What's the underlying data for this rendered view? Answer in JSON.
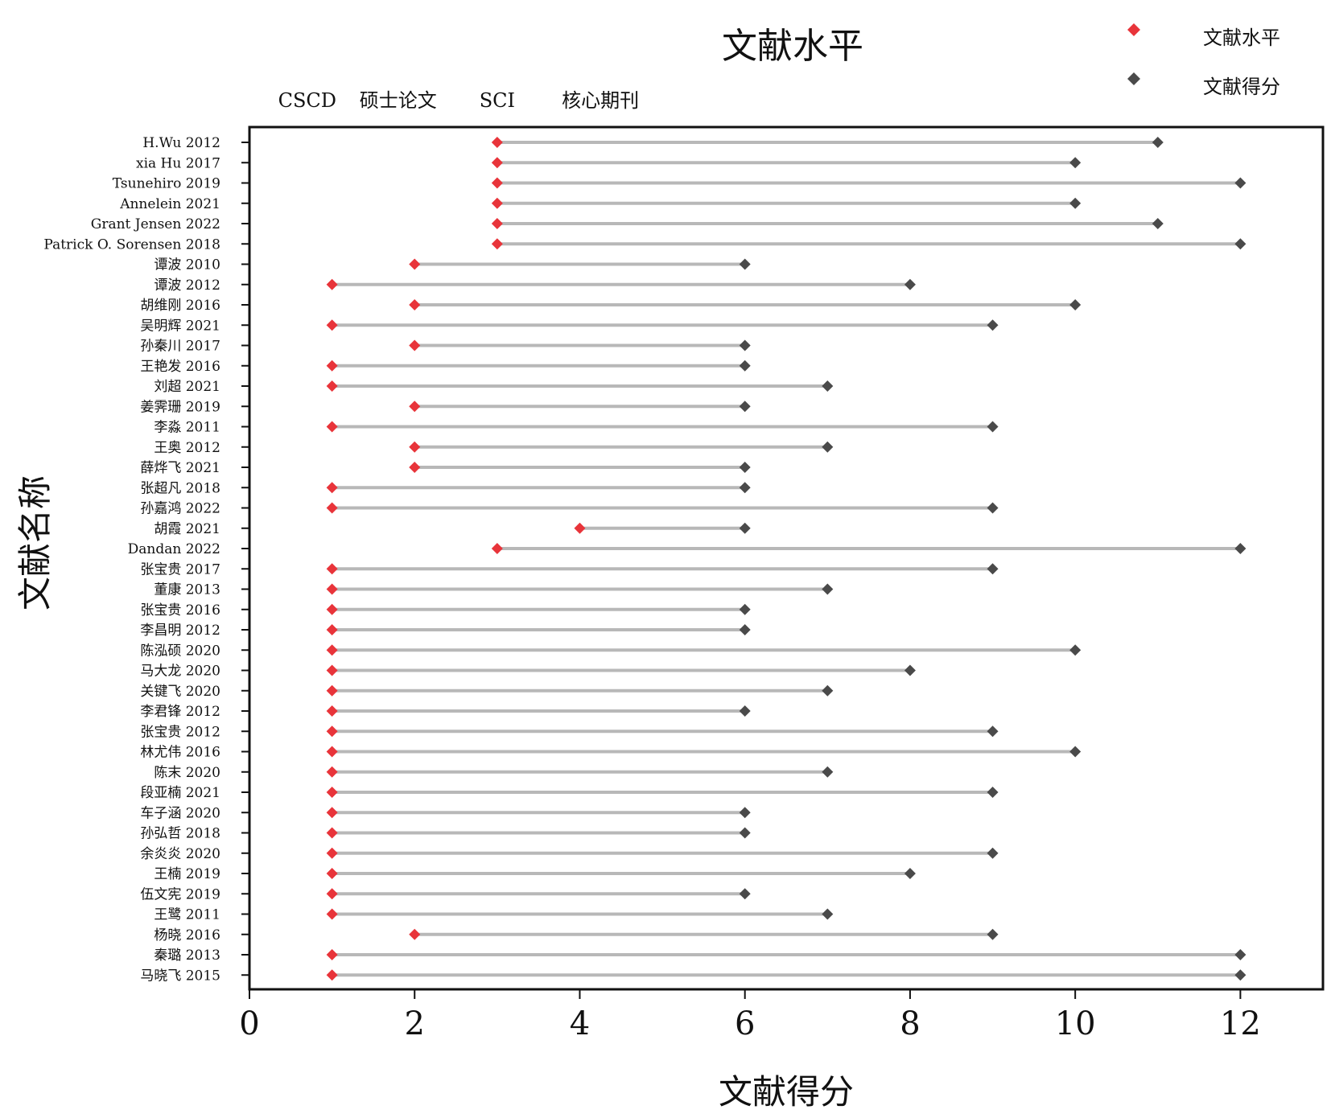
{
  "chart_data": {
    "type": "dumbbell",
    "title": "文献水平",
    "xlabel": "文献得分",
    "ylabel": "文献名称",
    "xlim": [
      0,
      13
    ],
    "xticks": [
      "0",
      "2",
      "4",
      "6",
      "8",
      "10",
      "12"
    ],
    "level_labels": [
      {
        "text": "CSCD",
        "x": 0.7
      },
      {
        "text": "硕士论文",
        "x": 1.8
      },
      {
        "text": "SCI",
        "x": 3.0
      },
      {
        "text": "核心期刊",
        "x": 4.25
      }
    ],
    "legend": {
      "position": "top-right",
      "items": [
        {
          "label": "文献水平",
          "color": "#e8343a"
        },
        {
          "label": "文献得分",
          "color": "#4a4a4a"
        }
      ]
    },
    "colors": {
      "level": "#e8343a",
      "score": "#4a4a4a",
      "segment": "#b8b8b8"
    },
    "grid": false,
    "rows": [
      {
        "name": "H.Wu 2012",
        "level": 3,
        "score": 11
      },
      {
        "name": "xia Hu 2017",
        "level": 3,
        "score": 10
      },
      {
        "name": "Tsunehiro 2019",
        "level": 3,
        "score": 12
      },
      {
        "name": "Annelein 2021",
        "level": 3,
        "score": 10
      },
      {
        "name": "Grant Jensen 2022",
        "level": 3,
        "score": 11
      },
      {
        "name": "Patrick O. Sorensen 2018",
        "level": 3,
        "score": 12
      },
      {
        "name": "谭波 2010",
        "level": 2,
        "score": 6
      },
      {
        "name": "谭波 2012",
        "level": 1,
        "score": 8
      },
      {
        "name": "胡维刚 2016",
        "level": 2,
        "score": 10
      },
      {
        "name": "吴明辉 2021",
        "level": 1,
        "score": 9
      },
      {
        "name": "孙秦川 2017",
        "level": 2,
        "score": 6
      },
      {
        "name": "王艳发 2016",
        "level": 1,
        "score": 6
      },
      {
        "name": "刘超 2021",
        "level": 1,
        "score": 7
      },
      {
        "name": "姜霁珊 2019",
        "level": 2,
        "score": 6
      },
      {
        "name": "李淼 2011",
        "level": 1,
        "score": 9
      },
      {
        "name": "王奥 2012",
        "level": 2,
        "score": 7
      },
      {
        "name": "薛烨飞 2021",
        "level": 2,
        "score": 6
      },
      {
        "name": "张超凡 2018",
        "level": 1,
        "score": 6
      },
      {
        "name": "孙嘉鸿 2022",
        "level": 1,
        "score": 9
      },
      {
        "name": "胡霞 2021",
        "level": 4,
        "score": 6
      },
      {
        "name": "Dandan 2022",
        "level": 3,
        "score": 12
      },
      {
        "name": "张宝贵 2017",
        "level": 1,
        "score": 9
      },
      {
        "name": "董康 2013",
        "level": 1,
        "score": 7
      },
      {
        "name": "张宝贵 2016",
        "level": 1,
        "score": 6
      },
      {
        "name": "李昌明 2012",
        "level": 1,
        "score": 6
      },
      {
        "name": "陈泓硕 2020",
        "level": 1,
        "score": 10
      },
      {
        "name": "马大龙 2020",
        "level": 1,
        "score": 8
      },
      {
        "name": "关键飞 2020",
        "level": 1,
        "score": 7
      },
      {
        "name": "李君锋 2012",
        "level": 1,
        "score": 6
      },
      {
        "name": "张宝贵 2012",
        "level": 1,
        "score": 9
      },
      {
        "name": "林尤伟 2016",
        "level": 1,
        "score": 10
      },
      {
        "name": "陈末 2020",
        "level": 1,
        "score": 7
      },
      {
        "name": "段亚楠 2021",
        "level": 1,
        "score": 9
      },
      {
        "name": "车子涵 2020",
        "level": 1,
        "score": 6
      },
      {
        "name": "孙弘哲 2018",
        "level": 1,
        "score": 6
      },
      {
        "name": "余炎炎 2020",
        "level": 1,
        "score": 9
      },
      {
        "name": "王楠 2019",
        "level": 1,
        "score": 8
      },
      {
        "name": "伍文宪 2019",
        "level": 1,
        "score": 6
      },
      {
        "name": "王鹭 2011",
        "level": 1,
        "score": 7
      },
      {
        "name": "杨晓 2016",
        "level": 2,
        "score": 9
      },
      {
        "name": "秦璐 2013",
        "level": 1,
        "score": 12
      },
      {
        "name": "马晓飞 2015",
        "level": 1,
        "score": 12
      }
    ]
  }
}
